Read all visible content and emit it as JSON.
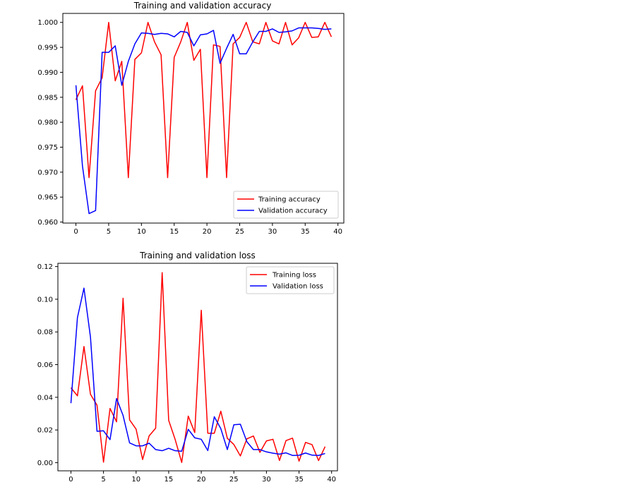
{
  "chart_data": [
    {
      "type": "line",
      "title": "Training and validation accuracy",
      "xlabel": "",
      "ylabel": "",
      "xlim": [
        -2,
        40.9
      ],
      "ylim": [
        0.9598,
        1.0018
      ],
      "xticks": [
        0,
        5,
        10,
        15,
        20,
        25,
        30,
        35,
        40
      ],
      "yticks": [
        0.96,
        0.965,
        0.97,
        0.975,
        0.98,
        0.985,
        0.99,
        0.995,
        1.0
      ],
      "ytick_labels": [
        "0.960",
        "0.965",
        "0.970",
        "0.975",
        "0.980",
        "0.985",
        "0.990",
        "0.995",
        "1.000"
      ],
      "legend_position": "lower-right",
      "x": [
        0,
        1,
        2,
        3,
        4,
        5,
        6,
        7,
        8,
        9,
        10,
        11,
        12,
        13,
        14,
        15,
        16,
        17,
        18,
        19,
        20,
        21,
        22,
        23,
        24,
        25,
        26,
        27,
        28,
        29,
        30,
        31,
        32,
        33,
        34,
        35,
        36,
        37,
        38,
        39
      ],
      "series": [
        {
          "name": "Training accuracy",
          "color": "#ff0000",
          "values": [
            0.9845,
            0.9873,
            0.9689,
            0.9863,
            0.9889,
            1.0,
            0.9883,
            0.9922,
            0.9689,
            0.9926,
            0.9939,
            1.0,
            0.9961,
            0.9935,
            0.9689,
            0.993,
            0.9961,
            1.0,
            0.9924,
            0.9946,
            0.9689,
            0.9955,
            0.9952,
            0.9689,
            0.9957,
            0.997,
            1.0,
            0.9961,
            0.9957,
            1.0,
            0.9963,
            0.9957,
            1.0,
            0.9955,
            0.9969,
            1.0,
            0.997,
            0.9971,
            1.0,
            0.9971
          ]
        },
        {
          "name": "Validation accuracy",
          "color": "#0000ff",
          "values": [
            0.9874,
            0.9712,
            0.9617,
            0.9623,
            0.994,
            0.994,
            0.9953,
            0.9874,
            0.9922,
            0.9957,
            0.9979,
            0.9978,
            0.9976,
            0.9978,
            0.9977,
            0.9971,
            0.9982,
            0.998,
            0.9953,
            0.9975,
            0.9977,
            0.9984,
            0.9918,
            0.9948,
            0.9976,
            0.9937,
            0.9937,
            0.9961,
            0.9982,
            0.9982,
            0.9987,
            0.998,
            0.9981,
            0.9983,
            0.9989,
            0.9989,
            0.9989,
            0.9988,
            0.9986,
            0.9987
          ]
        }
      ]
    },
    {
      "type": "line",
      "title": "Training and validation loss",
      "xlabel": "",
      "ylabel": "",
      "xlim": [
        -2,
        40.9
      ],
      "ylim": [
        -0.005,
        0.122
      ],
      "xticks": [
        0,
        5,
        10,
        15,
        20,
        25,
        30,
        35,
        40
      ],
      "yticks": [
        0.0,
        0.02,
        0.04,
        0.06,
        0.08,
        0.1,
        0.12
      ],
      "ytick_labels": [
        "0.00",
        "0.02",
        "0.04",
        "0.06",
        "0.08",
        "0.10",
        "0.12"
      ],
      "legend_position": "upper-right",
      "x": [
        0,
        1,
        2,
        3,
        4,
        5,
        6,
        7,
        8,
        9,
        10,
        11,
        12,
        13,
        14,
        15,
        16,
        17,
        18,
        19,
        20,
        21,
        22,
        23,
        24,
        25,
        26,
        27,
        28,
        29,
        30,
        31,
        32,
        33,
        34,
        35,
        36,
        37,
        38,
        39
      ],
      "series": [
        {
          "name": "Training loss",
          "color": "#ff0000",
          "values": [
            0.0458,
            0.0409,
            0.0711,
            0.0418,
            0.0352,
            0.0003,
            0.0332,
            0.025,
            0.1006,
            0.0262,
            0.0205,
            0.0019,
            0.0164,
            0.0211,
            0.1163,
            0.0259,
            0.0141,
            0.0001,
            0.0285,
            0.0184,
            0.0933,
            0.018,
            0.018,
            0.0315,
            0.0149,
            0.0111,
            0.0041,
            0.0146,
            0.0163,
            0.0063,
            0.0133,
            0.0143,
            0.0013,
            0.0135,
            0.015,
            0.0009,
            0.0124,
            0.011,
            0.0013,
            0.0098
          ]
        },
        {
          "name": "Validation loss",
          "color": "#0000ff",
          "values": [
            0.0364,
            0.0888,
            0.1068,
            0.0768,
            0.0192,
            0.0195,
            0.0141,
            0.0392,
            0.0289,
            0.0121,
            0.0103,
            0.0103,
            0.0119,
            0.008,
            0.0073,
            0.0088,
            0.0073,
            0.007,
            0.0204,
            0.0152,
            0.0143,
            0.0074,
            0.0281,
            0.0208,
            0.008,
            0.0232,
            0.0235,
            0.0128,
            0.008,
            0.008,
            0.0066,
            0.0058,
            0.0052,
            0.006,
            0.0044,
            0.0045,
            0.0059,
            0.0046,
            0.0044,
            0.0056
          ]
        }
      ]
    }
  ]
}
